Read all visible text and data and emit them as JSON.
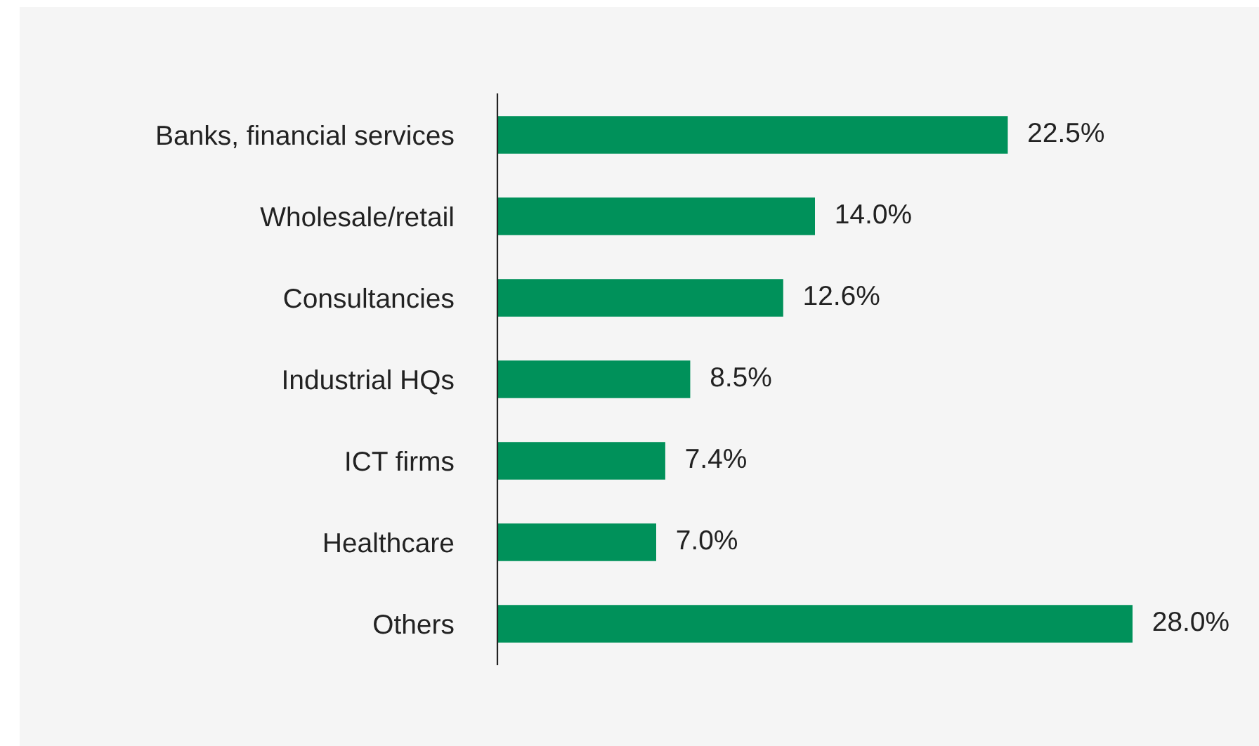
{
  "chart_data": {
    "type": "bar",
    "orientation": "horizontal",
    "categories": [
      "Banks, financial services",
      "Wholesale/retail",
      "Consultancies",
      "Industrial HQs",
      "ICT firms",
      "Healthcare",
      "Others"
    ],
    "values": [
      22.5,
      14.0,
      12.6,
      8.5,
      7.4,
      7.0,
      28.0
    ],
    "value_labels": [
      "22.5%",
      "14.0%",
      "12.6%",
      "8.5%",
      "7.4%",
      "7.0%",
      "28.0%"
    ],
    "color": "#00915a",
    "grid": false,
    "legend": false
  }
}
